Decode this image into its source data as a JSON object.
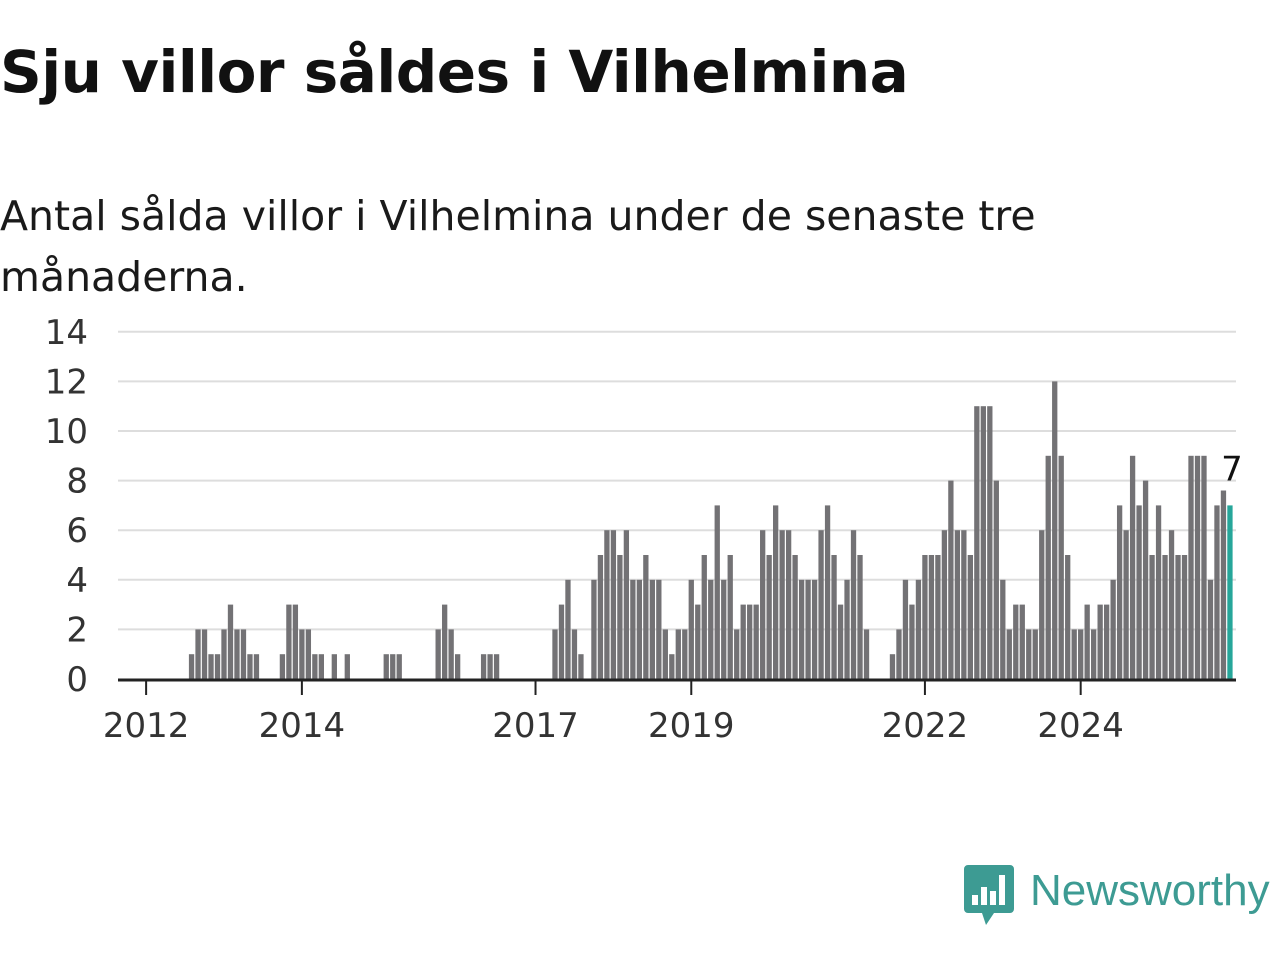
{
  "header": {
    "title": "Sju villor såldes i Vilhelmina",
    "subtitle": "Antal sålda villor i Vilhelmina under de senaste tre månaderna."
  },
  "brand": {
    "name": "Newsworthy",
    "icon": "newsworthy-logo-icon",
    "color": "#3d9b93"
  },
  "colors": {
    "bar": "#737275",
    "highlight": "#26a69a",
    "grid": "#dddddd",
    "axis": "#222222"
  },
  "chart_data": {
    "type": "bar",
    "x_start": "2011-10",
    "x_interval": "month",
    "y_ticks": [
      0,
      2,
      4,
      6,
      8,
      10,
      12,
      14
    ],
    "x_ticks": [
      {
        "label": "2012",
        "date": "2012-01"
      },
      {
        "label": "2014",
        "date": "2014-01"
      },
      {
        "label": "2017",
        "date": "2017-01"
      },
      {
        "label": "2019",
        "date": "2019-01"
      },
      {
        "label": "2022",
        "date": "2022-01"
      },
      {
        "label": "2024",
        "date": "2024-01"
      }
    ],
    "ylim": [
      0,
      14
    ],
    "grid": true,
    "highlight_last": true,
    "last_value_label": "7",
    "values": [
      0,
      0,
      0,
      0,
      0,
      0,
      0,
      0,
      0,
      0,
      1,
      2,
      2,
      1,
      1,
      2,
      3,
      2,
      2,
      1,
      1,
      0,
      0,
      0,
      1,
      3,
      3,
      2,
      2,
      1,
      1,
      0,
      1,
      0,
      1,
      0,
      0,
      0,
      0,
      0,
      1,
      1,
      1,
      0,
      0,
      0,
      0,
      0,
      2,
      3,
      2,
      1,
      0,
      0,
      0,
      1,
      1,
      1,
      0,
      0,
      0,
      0,
      0,
      0,
      0,
      0,
      2,
      3,
      4,
      2,
      1,
      0,
      4,
      5,
      6,
      6,
      5,
      6,
      4,
      4,
      5,
      4,
      4,
      2,
      1,
      2,
      2,
      4,
      3,
      5,
      4,
      7,
      4,
      5,
      2,
      3,
      3,
      3,
      6,
      5,
      7,
      6,
      6,
      5,
      4,
      4,
      4,
      6,
      7,
      5,
      3,
      4,
      6,
      5,
      2,
      0,
      0,
      0,
      1,
      2,
      4,
      3,
      4,
      5,
      5,
      5,
      6,
      8,
      6,
      6,
      5,
      11,
      11,
      11,
      8,
      4,
      2,
      3,
      3,
      2,
      2,
      6,
      9,
      12,
      9,
      5,
      2,
      2,
      3,
      2,
      3,
      3,
      4,
      7,
      6,
      9,
      7,
      8,
      5,
      7,
      5,
      6,
      5,
      5,
      9,
      9,
      9,
      4,
      7,
      7.6,
      7
    ]
  }
}
